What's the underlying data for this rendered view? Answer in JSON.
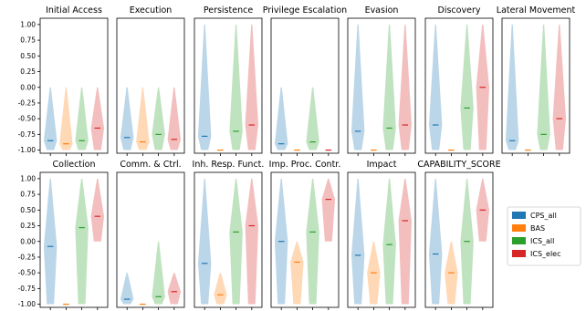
{
  "chart_data": {
    "type": "violin",
    "ylim": [
      -1.05,
      1.1
    ],
    "yticks": [
      "1.00",
      "0.75",
      "0.50",
      "0.25",
      "0.00",
      "-0.25",
      "-0.50",
      "-0.75",
      "-1.00"
    ],
    "ytick_values": [
      1.0,
      0.75,
      0.5,
      0.25,
      0.0,
      -0.25,
      -0.5,
      -0.75,
      -1.0
    ],
    "series": [
      {
        "name": "CPS_all",
        "color": "#1f77b4"
      },
      {
        "name": "BAS",
        "color": "#ff7f0e"
      },
      {
        "name": "ICS_all",
        "color": "#2ca02c"
      },
      {
        "name": "ICS_elec",
        "color": "#d62728"
      }
    ],
    "legend_position": "right",
    "panels": [
      {
        "title": "Initial Access",
        "violins": [
          {
            "series": "CPS_all",
            "min": -1.0,
            "max": 0.0,
            "median": -0.85
          },
          {
            "series": "BAS",
            "min": -1.0,
            "max": 0.0,
            "median": -0.9
          },
          {
            "series": "ICS_all",
            "min": -1.0,
            "max": 0.0,
            "median": -0.85
          },
          {
            "series": "ICS_elec",
            "min": -1.0,
            "max": 0.0,
            "median": -0.65
          }
        ]
      },
      {
        "title": "Execution",
        "violins": [
          {
            "series": "CPS_all",
            "min": -1.0,
            "max": 0.0,
            "median": -0.8
          },
          {
            "series": "BAS",
            "min": -1.0,
            "max": 0.0,
            "median": -0.87
          },
          {
            "series": "ICS_all",
            "min": -1.0,
            "max": 0.0,
            "median": -0.75
          },
          {
            "series": "ICS_elec",
            "min": -1.0,
            "max": 0.0,
            "median": -0.83
          }
        ]
      },
      {
        "title": "Persistence",
        "violins": [
          {
            "series": "CPS_all",
            "min": -1.0,
            "max": 1.0,
            "median": -0.78
          },
          {
            "series": "BAS",
            "min": -1.0,
            "max": -1.0,
            "median": -1.0
          },
          {
            "series": "ICS_all",
            "min": -1.0,
            "max": 1.0,
            "median": -0.7
          },
          {
            "series": "ICS_elec",
            "min": -1.0,
            "max": 1.0,
            "median": -0.6
          }
        ]
      },
      {
        "title": "Privilege Escalation",
        "violins": [
          {
            "series": "CPS_all",
            "min": -1.0,
            "max": 0.0,
            "median": -0.9
          },
          {
            "series": "BAS",
            "min": -1.0,
            "max": -1.0,
            "median": -1.0
          },
          {
            "series": "ICS_all",
            "min": -1.0,
            "max": 0.0,
            "median": -0.87
          },
          {
            "series": "ICS_elec",
            "min": -1.0,
            "max": -1.0,
            "median": -1.0
          }
        ]
      },
      {
        "title": "Evasion",
        "violins": [
          {
            "series": "CPS_all",
            "min": -1.0,
            "max": 1.0,
            "median": -0.7
          },
          {
            "series": "BAS",
            "min": -1.0,
            "max": -1.0,
            "median": -1.0
          },
          {
            "series": "ICS_all",
            "min": -1.0,
            "max": 1.0,
            "median": -0.65
          },
          {
            "series": "ICS_elec",
            "min": -1.0,
            "max": 1.0,
            "median": -0.6
          }
        ]
      },
      {
        "title": "Discovery",
        "violins": [
          {
            "series": "CPS_all",
            "min": -1.0,
            "max": 1.0,
            "median": -0.6
          },
          {
            "series": "BAS",
            "min": -1.0,
            "max": -1.0,
            "median": -1.0
          },
          {
            "series": "ICS_all",
            "min": -1.0,
            "max": 1.0,
            "median": -0.33
          },
          {
            "series": "ICS_elec",
            "min": -1.0,
            "max": 1.0,
            "median": 0.0
          }
        ]
      },
      {
        "title": "Lateral Movement",
        "violins": [
          {
            "series": "CPS_all",
            "min": -1.0,
            "max": 1.0,
            "median": -0.85
          },
          {
            "series": "BAS",
            "min": -1.0,
            "max": -1.0,
            "median": -1.0
          },
          {
            "series": "ICS_all",
            "min": -1.0,
            "max": 1.0,
            "median": -0.75
          },
          {
            "series": "ICS_elec",
            "min": -1.0,
            "max": 1.0,
            "median": -0.5
          }
        ]
      },
      {
        "title": "Collection",
        "violins": [
          {
            "series": "CPS_all",
            "min": -1.0,
            "max": 1.0,
            "median": -0.08
          },
          {
            "series": "BAS",
            "min": -1.0,
            "max": -1.0,
            "median": -1.0
          },
          {
            "series": "ICS_all",
            "min": -1.0,
            "max": 1.0,
            "median": 0.22
          },
          {
            "series": "ICS_elec",
            "min": 0.0,
            "max": 1.0,
            "median": 0.4
          }
        ]
      },
      {
        "title": "Comm. & Ctrl.",
        "violins": [
          {
            "series": "CPS_all",
            "min": -1.0,
            "max": -0.5,
            "median": -0.92
          },
          {
            "series": "BAS",
            "min": -1.0,
            "max": -1.0,
            "median": -1.0
          },
          {
            "series": "ICS_all",
            "min": -1.0,
            "max": 0.0,
            "median": -0.88
          },
          {
            "series": "ICS_elec",
            "min": -1.0,
            "max": -0.5,
            "median": -0.8
          }
        ]
      },
      {
        "title": "Inh. Resp. Funct.",
        "violins": [
          {
            "series": "CPS_all",
            "min": -1.0,
            "max": 1.0,
            "median": -0.35
          },
          {
            "series": "BAS",
            "min": -1.0,
            "max": -0.5,
            "median": -0.85
          },
          {
            "series": "ICS_all",
            "min": -1.0,
            "max": 1.0,
            "median": 0.15
          },
          {
            "series": "ICS_elec",
            "min": -1.0,
            "max": 1.0,
            "median": 0.25
          }
        ]
      },
      {
        "title": "Imp. Proc. Contr.",
        "violins": [
          {
            "series": "CPS_all",
            "min": -1.0,
            "max": 1.0,
            "median": 0.0
          },
          {
            "series": "BAS",
            "min": -1.0,
            "max": 0.0,
            "median": -0.33
          },
          {
            "series": "ICS_all",
            "min": -1.0,
            "max": 1.0,
            "median": 0.15
          },
          {
            "series": "ICS_elec",
            "min": 0.0,
            "max": 1.0,
            "median": 0.67
          }
        ]
      },
      {
        "title": "Impact",
        "violins": [
          {
            "series": "CPS_all",
            "min": -1.0,
            "max": 1.0,
            "median": -0.22
          },
          {
            "series": "BAS",
            "min": -1.0,
            "max": 0.0,
            "median": -0.5
          },
          {
            "series": "ICS_all",
            "min": -1.0,
            "max": 1.0,
            "median": -0.05
          },
          {
            "series": "ICS_elec",
            "min": -1.0,
            "max": 1.0,
            "median": 0.33
          }
        ]
      },
      {
        "title": "CAPABILITY_SCORE",
        "violins": [
          {
            "series": "CPS_all",
            "min": -1.0,
            "max": 1.0,
            "median": -0.2
          },
          {
            "series": "BAS",
            "min": -1.0,
            "max": 0.0,
            "median": -0.5
          },
          {
            "series": "ICS_all",
            "min": -1.0,
            "max": 1.0,
            "median": 0.0
          },
          {
            "series": "ICS_elec",
            "min": 0.0,
            "max": 1.0,
            "median": 0.5
          }
        ]
      }
    ]
  }
}
